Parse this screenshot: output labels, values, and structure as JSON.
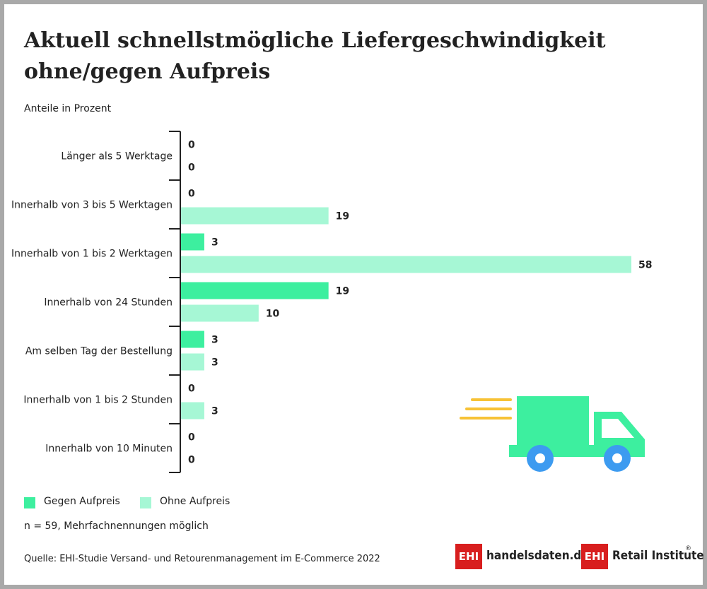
{
  "chart_data": {
    "type": "bar",
    "orientation": "horizontal",
    "title": "Aktuell schnellstmögliche Liefergeschwindigkeit ohne/gegen Aufpreis",
    "subtitle": "Anteile in Prozent",
    "categories": [
      "Länger als 5 Werktage",
      "Innerhalb von 3 bis 5 Werktagen",
      "Innerhalb von 1 bis 2 Werktagen",
      "Innerhalb von 24 Stunden",
      "Am selben Tag der Bestellung",
      "Innerhalb von 1 bis 2 Stunden",
      "Innerhalb von 10 Minuten"
    ],
    "series": [
      {
        "name": "Gegen Aufpreis",
        "color": "#3def9f",
        "values": [
          0,
          0,
          3,
          19,
          3,
          0,
          0
        ]
      },
      {
        "name": "Ohne Aufpreis",
        "color": "#a6f7d5",
        "values": [
          0,
          19,
          58,
          10,
          3,
          3,
          0
        ]
      }
    ],
    "xlim": [
      0,
      58
    ],
    "grid": false,
    "legend_position": "bottom-left"
  },
  "note": "n = 59, Mehrfachnennungen möglich",
  "source": "Quelle: EHI-Studie Versand- und Retourenmanagement im E-Commerce 2022",
  "logos": [
    {
      "box": "EHI",
      "text": "handelsdaten.de"
    },
    {
      "box": "EHI",
      "text": "Retail Institute",
      "mark": "®"
    }
  ],
  "illustration": {
    "icon": "delivery-truck-icon",
    "body_color": "#3def9f",
    "wheel_color": "#3d9bf0",
    "speed_lines_color": "#f7c236"
  }
}
